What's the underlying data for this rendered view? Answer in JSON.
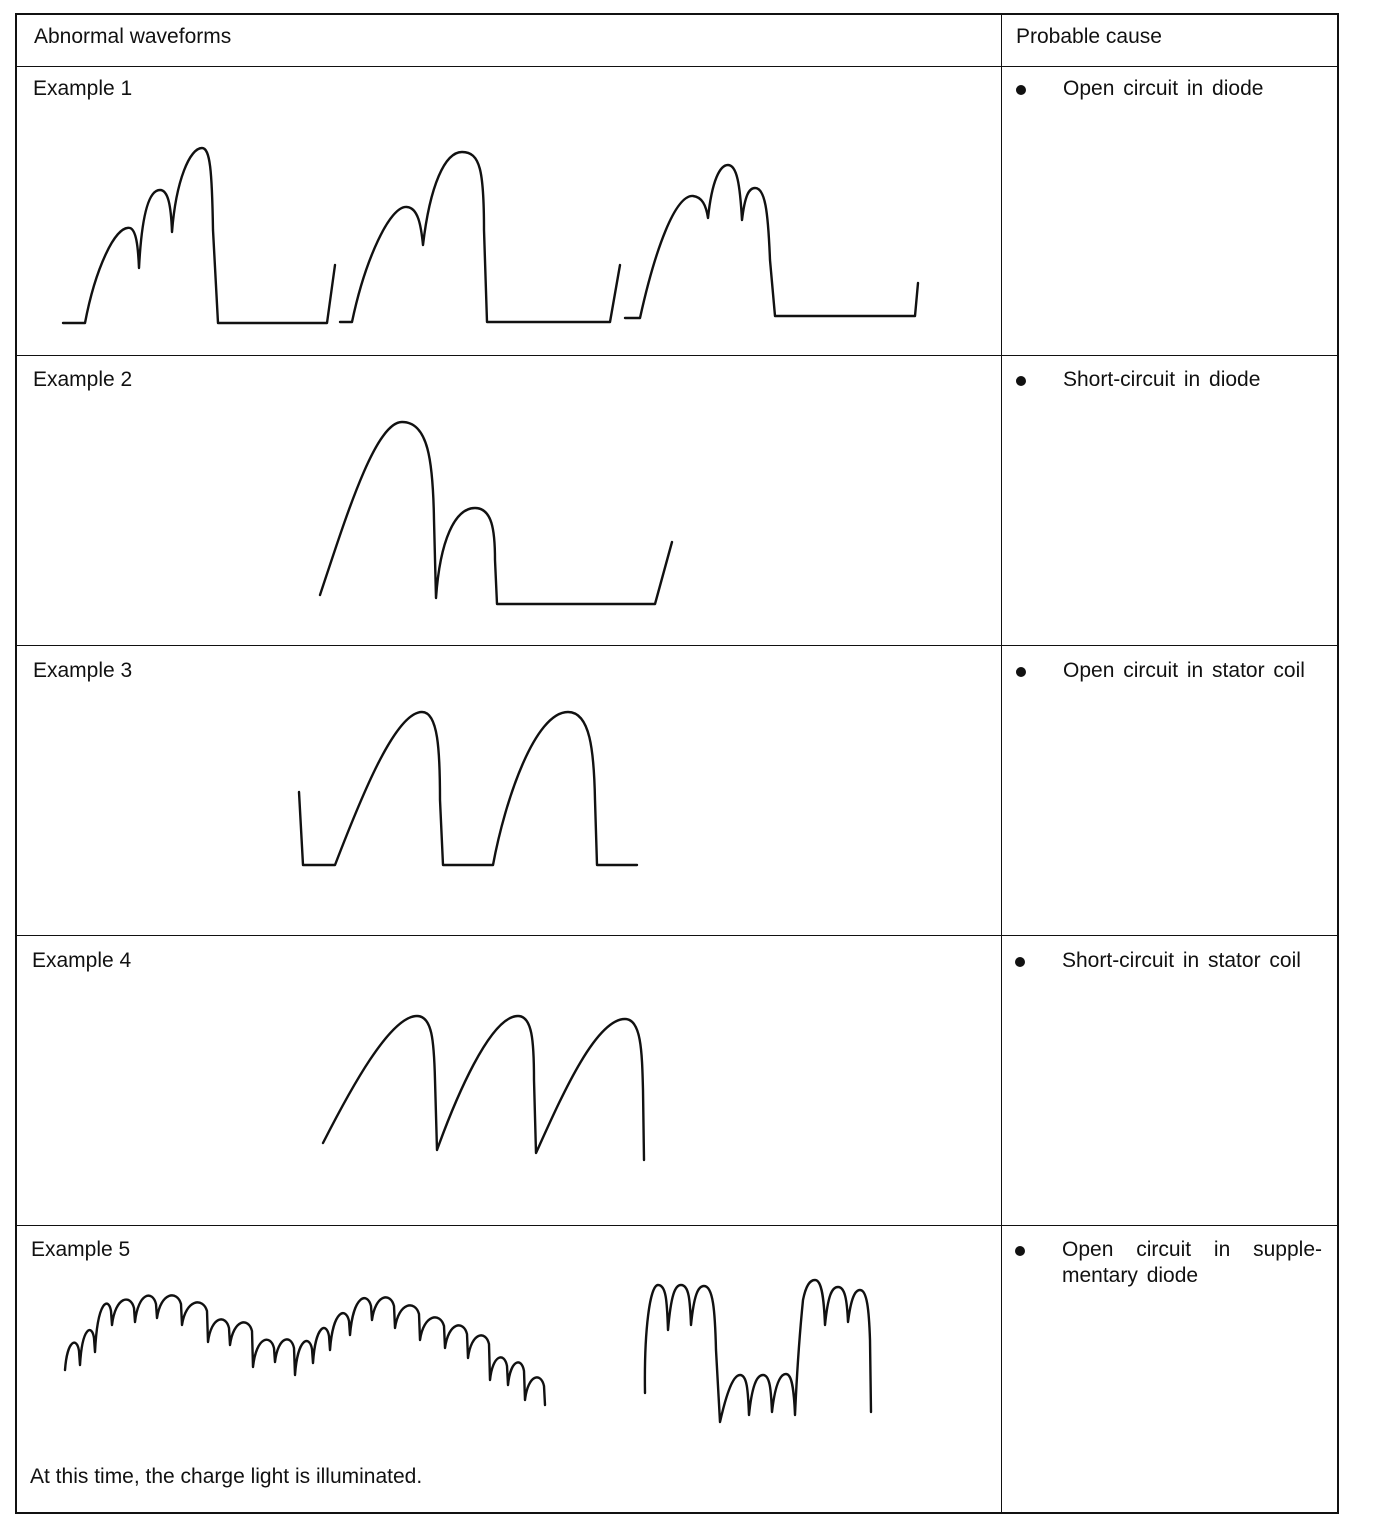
{
  "table": {
    "headers": {
      "waveforms": "Abnormal waveforms",
      "cause": "Probable cause"
    },
    "rows": [
      {
        "example": "Example 1",
        "cause": "Open circuit in diode"
      },
      {
        "example": "Example 2",
        "cause": "Short-circuit in diode"
      },
      {
        "example": "Example 3",
        "cause": "Open circuit in stator coil"
      },
      {
        "example": "Example 4",
        "cause": "Short-circuit in stator coil"
      },
      {
        "example": "Example 5",
        "cause": "Open circuit in supple-mentary diode",
        "note": "At this time, the charge light is illuminated."
      }
    ]
  }
}
